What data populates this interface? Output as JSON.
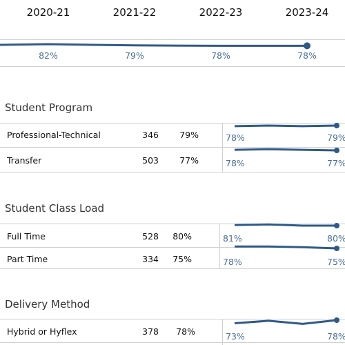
{
  "header": {
    "years": [
      "2020-21",
      "2021-22",
      "2022-23",
      "2023-24"
    ]
  },
  "overall": {
    "values": [
      82,
      79,
      78,
      78
    ],
    "labels": [
      "82%",
      "79%",
      "78%",
      "78%"
    ]
  },
  "sections": [
    {
      "title": "Student Program",
      "rows": [
        {
          "label": "Professional-Technical",
          "count": "346",
          "pct": "79%",
          "trend": [
            78,
            79,
            78,
            79
          ],
          "first": "78%",
          "last": "79%"
        },
        {
          "label": "Transfer",
          "count": "503",
          "pct": "77%",
          "trend": [
            78,
            79,
            78,
            77
          ],
          "first": "78%",
          "last": "77%"
        }
      ]
    },
    {
      "title": "Student Class Load",
      "rows": [
        {
          "label": "Full Time",
          "count": "528",
          "pct": "80%",
          "trend": [
            81,
            82,
            80,
            80
          ],
          "first": "81%",
          "last": "80%"
        },
        {
          "label": "Part Time",
          "count": "334",
          "pct": "75%",
          "trend": [
            78,
            78,
            77,
            75
          ],
          "first": "78%",
          "last": "75%"
        }
      ]
    },
    {
      "title": "Delivery Method",
      "rows": [
        {
          "label": "Hybrid or Hyflex",
          "count": "378",
          "pct": "78%",
          "trend": [
            73,
            77,
            72,
            78
          ],
          "first": "73%",
          "last": "78%"
        }
      ]
    }
  ],
  "colors": {
    "line": "#2e5a88",
    "label": "#4a6f95",
    "divider": "#cfcfcf"
  }
}
